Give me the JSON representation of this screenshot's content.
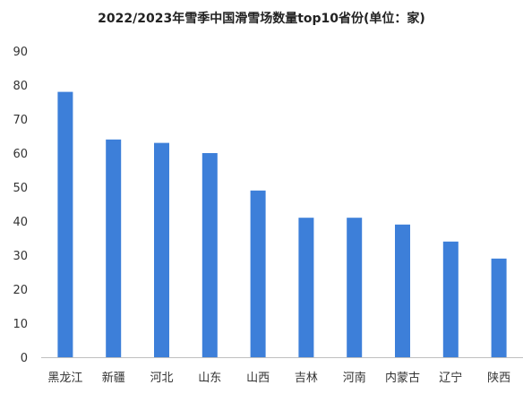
{
  "chart_data": {
    "type": "bar",
    "title": "2022/2023年雪季中国滑雪场数量top10省份(单位：家)",
    "categories": [
      "黑龙江",
      "新疆",
      "河北",
      "山东",
      "山西",
      "吉林",
      "河南",
      "内蒙古",
      "辽宁",
      "陕西"
    ],
    "values": [
      78,
      64,
      63,
      60,
      49,
      41,
      41,
      39,
      34,
      29
    ],
    "yticks": [
      "0",
      "10",
      "20",
      "30",
      "40",
      "50",
      "60",
      "70",
      "80",
      "90"
    ],
    "ylim": [
      0,
      90
    ],
    "xlabel": "",
    "ylabel": "",
    "grid": false,
    "legend": "none",
    "colors": {
      "bar": "#3d7fd9",
      "axis": "#bfbfbf",
      "text": "#333333"
    }
  }
}
